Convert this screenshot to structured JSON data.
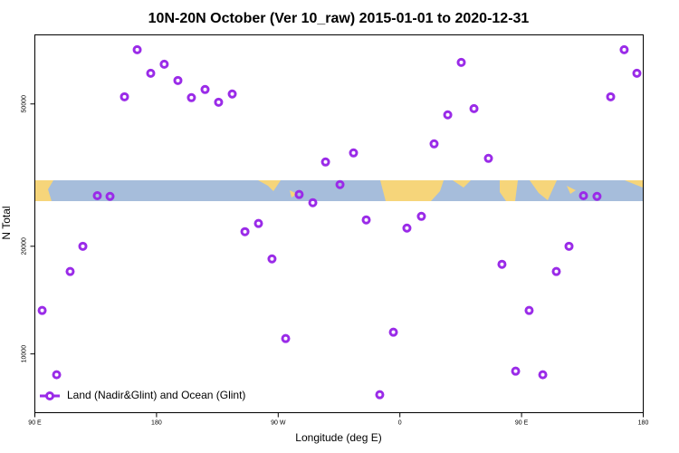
{
  "chart_data": {
    "type": "scatter",
    "title": "10N-20N October (Ver 10_raw)   2015-01-01 to 2020-12-31",
    "x_label": "Longitude (deg E)",
    "y_label": "N Total",
    "log_y": true,
    "legend": "bottom left",
    "series": [
      {
        "name": "Land (Nadir&Glint) and Ocean (Glint)",
        "color": "#9a2be8",
        "x": [
          95.4,
          106.1,
          116.1,
          125.5,
          136.2,
          145.6,
          156.3,
          165.7,
          175.7,
          185.7,
          195.8,
          205.8,
          215.9,
          225.9,
          236.0,
          245.4,
          255.4,
          265.4,
          275.5,
          285.5,
          295.6,
          305.0,
          315.7,
          325.7,
          335.1,
          345.1,
          355.2,
          365.2,
          375.9,
          385.3,
          395.4,
          405.4,
          414.8,
          425.5,
          435.5,
          445.6,
          455.6,
          465.7,
          475.7,
          485.1,
          495.8,
          505.8,
          515.9,
          525.9,
          535.3
        ],
        "values": [
          13230,
          8745,
          17000,
          20000,
          27700,
          27580,
          52360,
          70900,
          60920,
          64570,
          58150,
          52060,
          54870,
          50560,
          53300,
          21970,
          23160,
          18440,
          11040,
          27910,
          26480,
          34410,
          29750,
          36480,
          23700,
          7690,
          11500,
          22480,
          24250,
          38670,
          46610,
          65340,
          48530,
          35220,
          17810,
          8950,
          13230,
          8745,
          17000,
          20000,
          27700,
          27580,
          52360,
          70900,
          60920
        ]
      }
    ],
    "xlim": [
      90,
      540
    ],
    "xticks": [
      {
        "value": 90,
        "label": "90 E"
      },
      {
        "value": 180,
        "label": "180"
      },
      {
        "value": 270,
        "label": "90 W"
      },
      {
        "value": 360,
        "label": "0"
      },
      {
        "value": 450,
        "label": "90 E"
      },
      {
        "value": 540,
        "label": "180"
      }
    ],
    "ylim": [
      6850,
      78000
    ],
    "yticks": [
      10000,
      20000,
      50000
    ]
  }
}
